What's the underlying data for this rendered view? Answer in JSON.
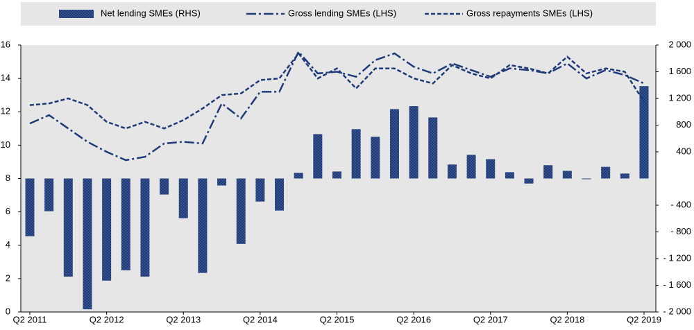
{
  "chart_data": {
    "type": "bar-line",
    "categories": [
      "Q2 2011",
      null,
      null,
      null,
      "Q2 2012",
      null,
      null,
      null,
      "Q2 2013",
      null,
      null,
      null,
      "Q2 2014",
      null,
      null,
      null,
      "Q2 2015",
      null,
      null,
      null,
      "Q2 2016",
      null,
      null,
      null,
      "Q2 2017",
      null,
      null,
      null,
      "Q2 2018",
      null,
      null,
      null,
      "Q2 2019"
    ],
    "series": [
      {
        "name": "Net lending SMEs (RHS)",
        "type": "bar",
        "axis": "y2",
        "color": "#1f3a78",
        "values": [
          -865,
          -490,
          -1470,
          -1960,
          -1530,
          -1375,
          -1470,
          -240,
          -595,
          -1415,
          -105,
          -980,
          -345,
          -480,
          85,
          665,
          105,
          740,
          625,
          1040,
          1085,
          915,
          210,
          355,
          290,
          95,
          -75,
          200,
          115,
          -10,
          175,
          75,
          1385
        ]
      },
      {
        "name": "Gross lending SMEs (LHS)",
        "type": "line",
        "dash": "dashdot",
        "color": "#1f3a78",
        "values": [
          11.3,
          11.8,
          11.0,
          10.2,
          9.6,
          9.1,
          9.3,
          10.1,
          10.2,
          10.1,
          12.5,
          11.6,
          13.2,
          13.2,
          15.6,
          14.3,
          14.4,
          14.1,
          15.1,
          15.5,
          14.7,
          14.3,
          14.9,
          14.5,
          14.1,
          14.6,
          14.5,
          14.3,
          14.9,
          14.0,
          14.5,
          14.2,
          13.7
        ]
      },
      {
        "name": "Gross repayments SMEs (LHS)",
        "type": "line",
        "dash": "dash",
        "color": "#1f3a78",
        "values": [
          12.4,
          12.5,
          12.8,
          12.4,
          11.4,
          11.0,
          11.4,
          11.0,
          11.5,
          12.2,
          13.0,
          13.1,
          13.9,
          14.0,
          15.5,
          14.0,
          14.6,
          13.4,
          14.6,
          14.6,
          14.0,
          13.7,
          14.8,
          14.3,
          14.0,
          14.8,
          14.6,
          14.3,
          15.3,
          14.3,
          14.6,
          14.4,
          12.6
        ]
      }
    ],
    "ylim": [
      0,
      16
    ],
    "yticks": [
      0,
      2,
      4,
      6,
      8,
      10,
      12,
      14,
      16
    ],
    "y2lim": [
      -2000,
      2000
    ],
    "y2ticks": [
      {
        "value": -2000,
        "label": "- 2 000"
      },
      {
        "value": -1600,
        "label": "- 1 600"
      },
      {
        "value": -1200,
        "label": "- 1 200"
      },
      {
        "value": -800,
        "label": "- 800"
      },
      {
        "value": -400,
        "label": "- 400"
      },
      400,
      800,
      {
        "value": 1200,
        "label": "1 200"
      },
      {
        "value": 1600,
        "label": "1 600"
      },
      {
        "value": 2000,
        "label": "2 000"
      }
    ],
    "grid": false,
    "legend": "top"
  }
}
